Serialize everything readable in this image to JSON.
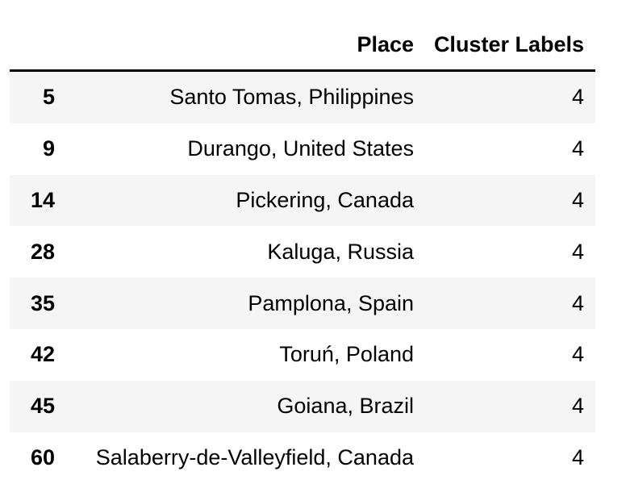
{
  "table": {
    "columns": {
      "index": "",
      "place": "Place",
      "cluster": "Cluster Labels"
    },
    "rows": [
      {
        "index": "5",
        "place": "Santo Tomas, Philippines",
        "cluster": "4"
      },
      {
        "index": "9",
        "place": "Durango, United States",
        "cluster": "4"
      },
      {
        "index": "14",
        "place": "Pickering, Canada",
        "cluster": "4"
      },
      {
        "index": "28",
        "place": "Kaluga, Russia",
        "cluster": "4"
      },
      {
        "index": "35",
        "place": "Pamplona, Spain",
        "cluster": "4"
      },
      {
        "index": "42",
        "place": "Toruń, Poland",
        "cluster": "4"
      },
      {
        "index": "45",
        "place": "Goiana, Brazil",
        "cluster": "4"
      },
      {
        "index": "60",
        "place": "Salaberry-de-Valleyfield, Canada",
        "cluster": "4"
      }
    ]
  }
}
